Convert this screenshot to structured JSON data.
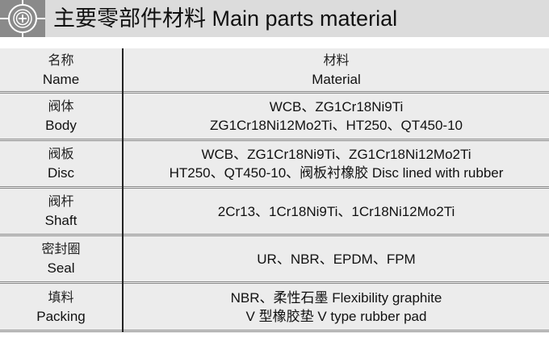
{
  "header": {
    "title": "主要零部件材料  Main parts material",
    "logo_icon": "circle-crosshair-logo"
  },
  "table": {
    "columns": [
      {
        "zh": "名称",
        "en": "Name"
      },
      {
        "zh": "材料",
        "en": "Material"
      }
    ],
    "rows": [
      {
        "zh": "阀体",
        "en": "Body",
        "material": [
          "WCB、ZG1Cr18Ni9Ti",
          "ZG1Cr18Ni12Mo2Ti、HT250、QT450-10"
        ]
      },
      {
        "zh": "阀板",
        "en": "Disc",
        "material": [
          "WCB、ZG1Cr18Ni9Ti、ZG1Cr18Ni12Mo2Ti",
          "HT250、QT450-10、阀板衬橡胶 Disc lined with rubber"
        ]
      },
      {
        "zh": "阀杆",
        "en": "Shaft",
        "material": [
          "2Cr13、1Cr18Ni9Ti、1Cr18Ni12Mo2Ti"
        ]
      },
      {
        "zh": "密封圈",
        "en": "Seal",
        "material": [
          "UR、NBR、EPDM、FPM"
        ]
      },
      {
        "zh": "填料",
        "en": "Packing",
        "material": [
          "NBR、柔性石墨 Flexibility graphite",
          "V 型橡胶垫 V type rubber pad"
        ]
      }
    ]
  },
  "colors": {
    "header_bg": "#dcdcdc",
    "table_bg": "#ececec",
    "logo_bg": "#8a8a8a"
  }
}
